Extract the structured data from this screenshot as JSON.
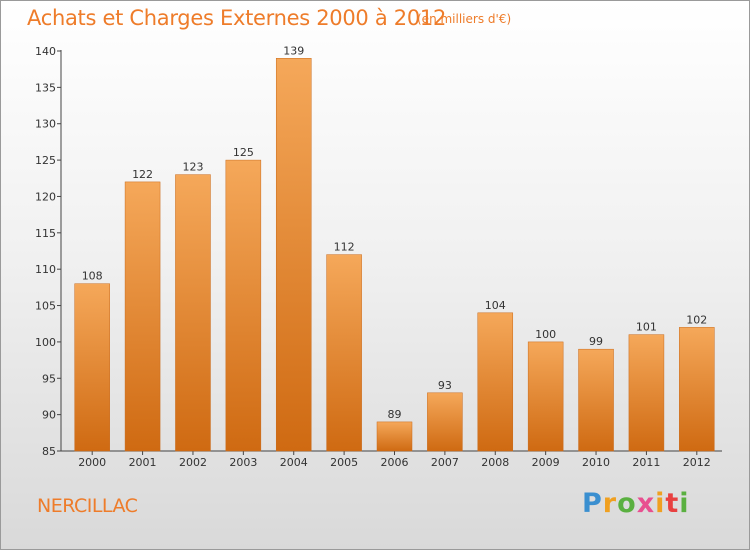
{
  "header": {
    "title": "Achats et Charges Externes 2000 à 2012",
    "subtitle": "(en milliers d'€)"
  },
  "footer": {
    "place": "NERCILLAC",
    "logo_letters": [
      "P",
      "r",
      "o",
      "x",
      "i",
      "t",
      "i"
    ]
  },
  "colors": {
    "title": "#ee7c2a",
    "bar_top": "#f5a85a",
    "bar_bottom": "#cf6a12"
  },
  "chart_data": {
    "type": "bar",
    "categories": [
      "2000",
      "2001",
      "2002",
      "2003",
      "2004",
      "2005",
      "2006",
      "2007",
      "2008",
      "2009",
      "2010",
      "2011",
      "2012"
    ],
    "values": [
      108,
      122,
      123,
      125,
      139,
      112,
      89,
      93,
      104,
      100,
      99,
      101,
      102
    ],
    "data_labels": [
      "108",
      "122",
      "123",
      "125",
      "139",
      "112",
      "89",
      "93",
      "104",
      "100",
      "99",
      "101",
      "102"
    ],
    "y_ticks": [
      "85",
      "90",
      "95",
      "100",
      "105",
      "110",
      "115",
      "120",
      "125",
      "130",
      "135",
      "140"
    ],
    "ylim": [
      85,
      140
    ],
    "grid": false
  }
}
